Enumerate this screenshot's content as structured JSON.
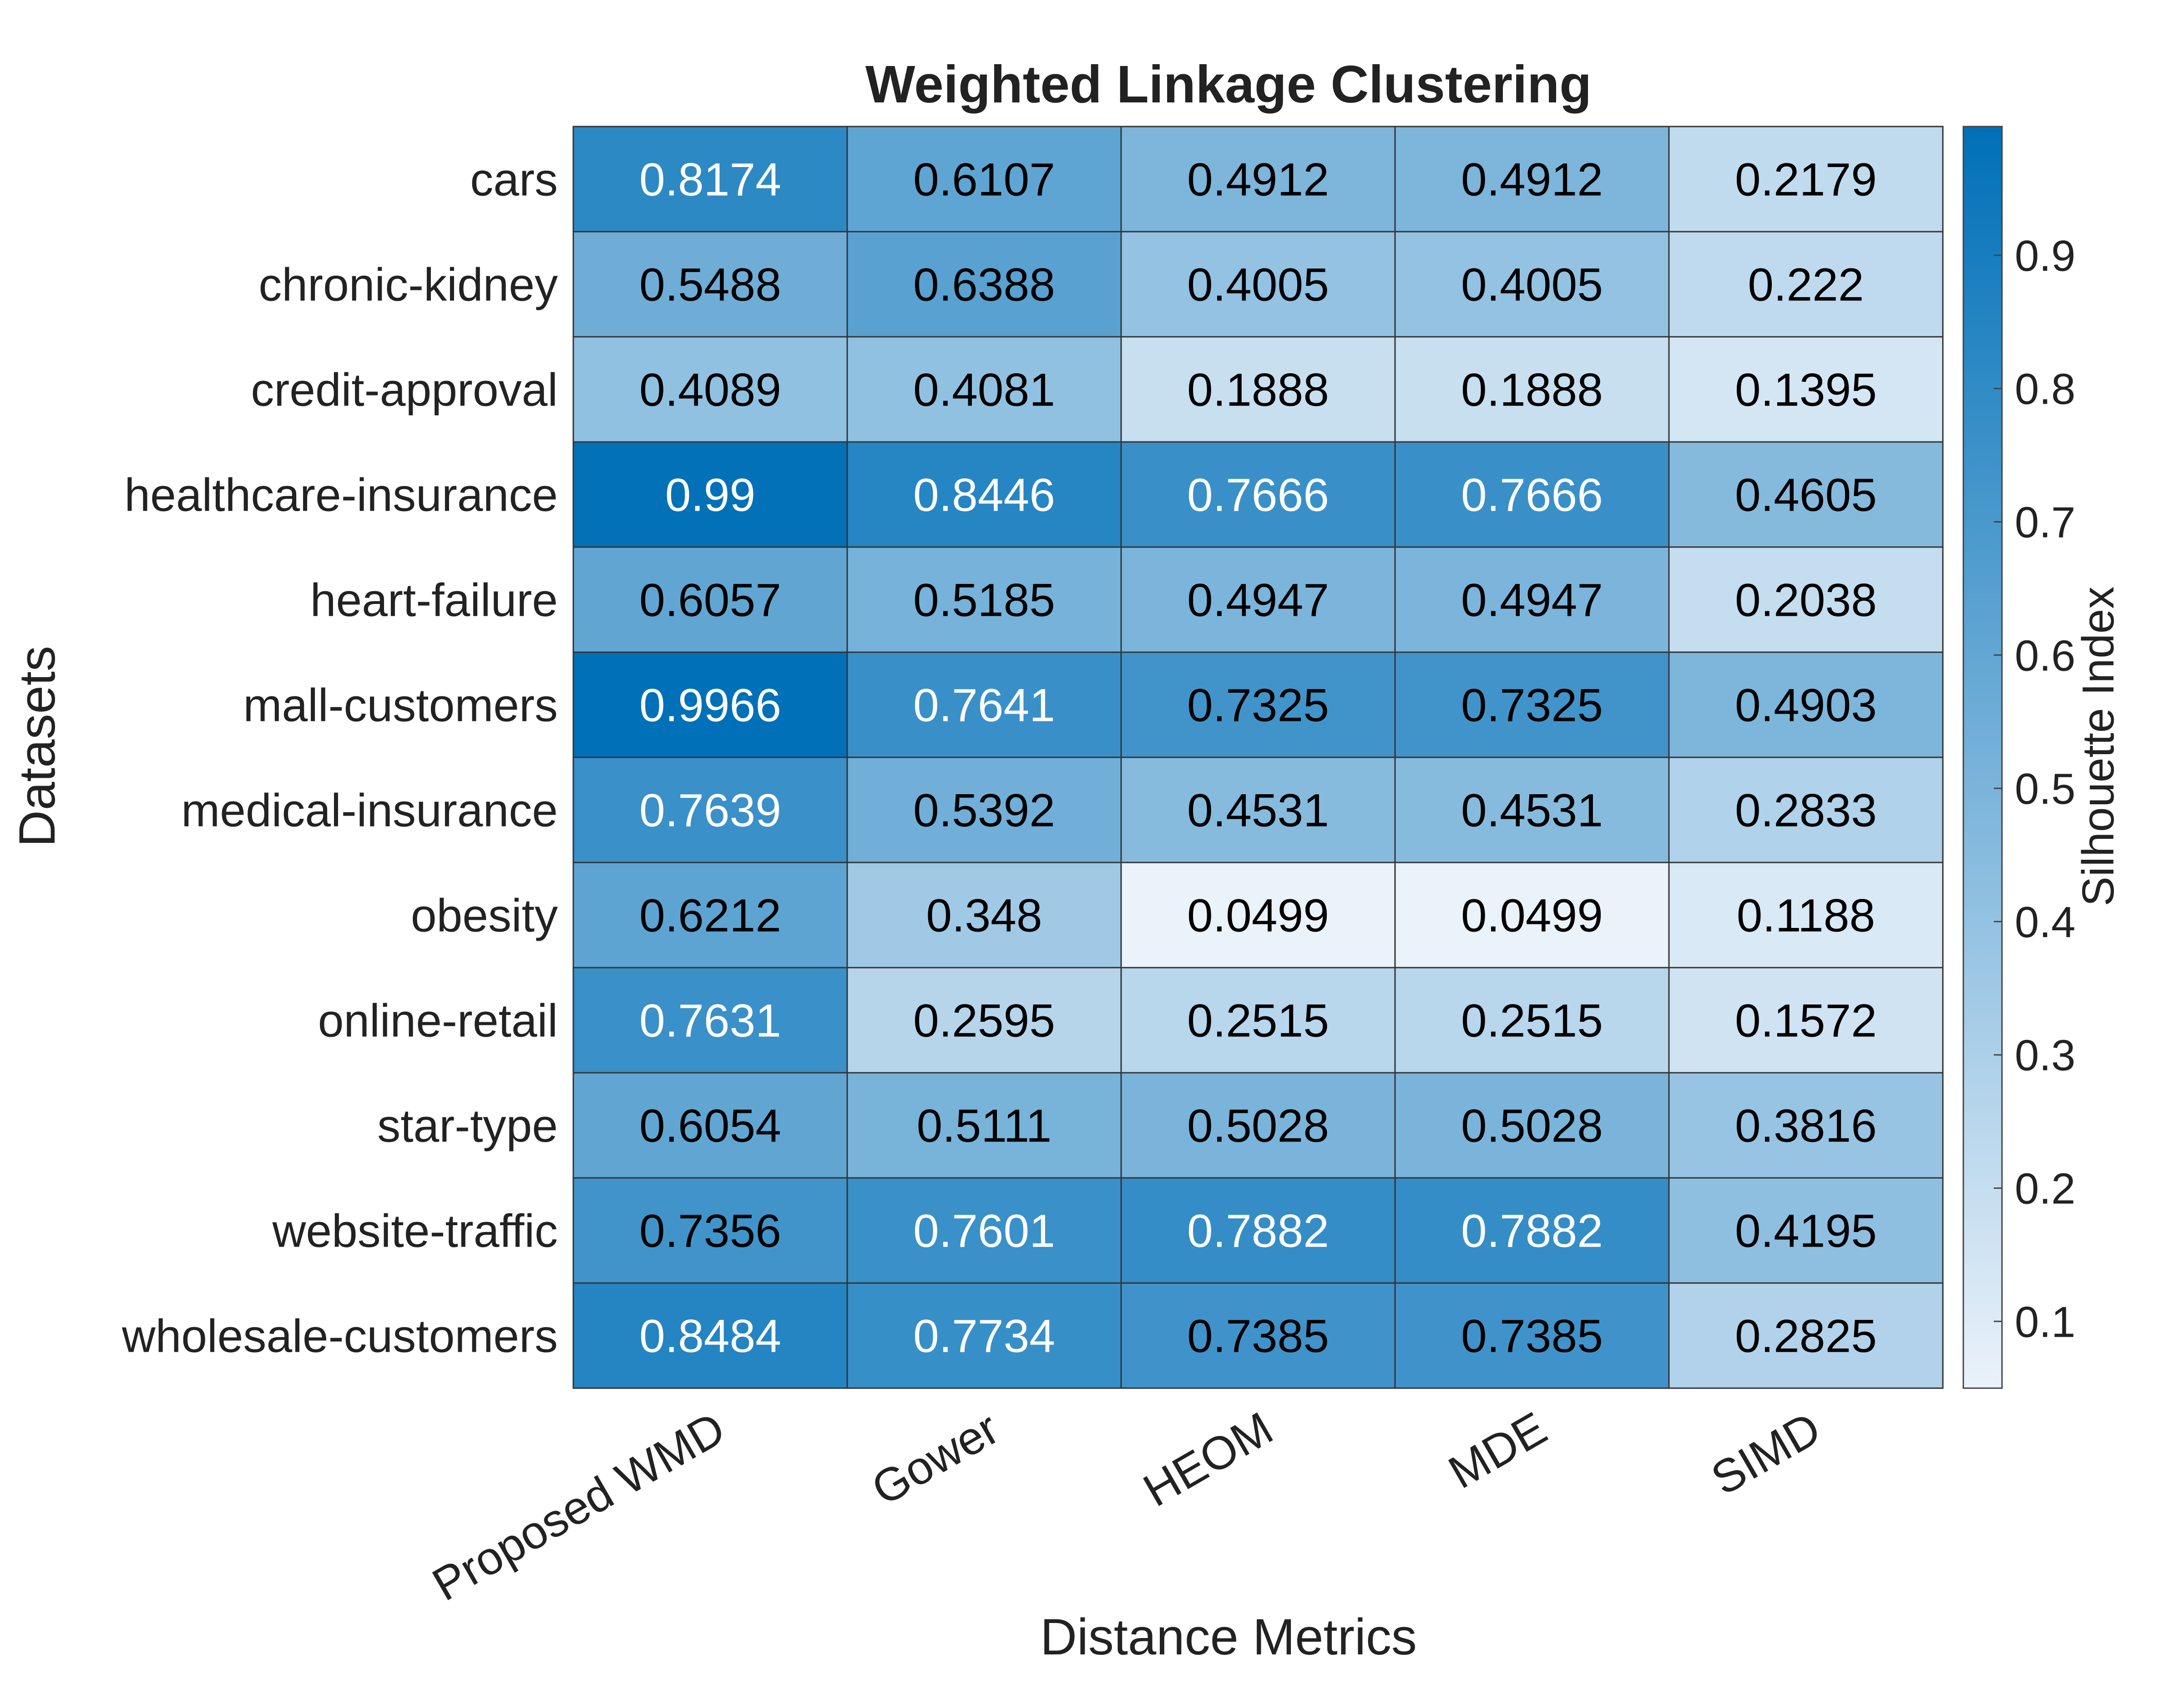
{
  "chart_data": {
    "type": "heatmap",
    "title": "Weighted Linkage Clustering",
    "xlabel": "Distance Metrics",
    "ylabel": "Datasets",
    "x_categories": [
      "Proposed WMD",
      "Gower",
      "HEOM",
      "MDE",
      "SIMD"
    ],
    "y_categories": [
      "cars",
      "chronic-kidney",
      "credit-approval",
      "healthcare-insurance",
      "heart-failure",
      "mall-customers",
      "medical-insurance",
      "obesity",
      "online-retail",
      "star-type",
      "website-traffic",
      "wholesale-customers"
    ],
    "values": [
      [
        "0.8174",
        "0.6107",
        "0.4912",
        "0.4912",
        "0.2179"
      ],
      [
        "0.5488",
        "0.6388",
        "0.4005",
        "0.4005",
        "0.222"
      ],
      [
        "0.4089",
        "0.4081",
        "0.1888",
        "0.1888",
        "0.1395"
      ],
      [
        "0.99",
        "0.8446",
        "0.7666",
        "0.7666",
        "0.4605"
      ],
      [
        "0.6057",
        "0.5185",
        "0.4947",
        "0.4947",
        "0.2038"
      ],
      [
        "0.9966",
        "0.7641",
        "0.7325",
        "0.7325",
        "0.4903"
      ],
      [
        "0.7639",
        "0.5392",
        "0.4531",
        "0.4531",
        "0.2833"
      ],
      [
        "0.6212",
        "0.348",
        "0.0499",
        "0.0499",
        "0.1188"
      ],
      [
        "0.7631",
        "0.2595",
        "0.2515",
        "0.2515",
        "0.1572"
      ],
      [
        "0.6054",
        "0.5111",
        "0.5028",
        "0.5028",
        "0.3816"
      ],
      [
        "0.7356",
        "0.7601",
        "0.7882",
        "0.7882",
        "0.4195"
      ],
      [
        "0.8484",
        "0.7734",
        "0.7385",
        "0.7385",
        "0.2825"
      ]
    ],
    "colorbar": {
      "label": "Silhouette Index",
      "range": [
        0.0499,
        0.9966
      ],
      "ticks": [
        "0.1",
        "0.2",
        "0.3",
        "0.4",
        "0.5",
        "0.6",
        "0.7",
        "0.8",
        "0.9"
      ]
    },
    "colors": {
      "low": "#eaf2fa",
      "high": "#0070b8",
      "text_dark": "#000000",
      "text_light": "#ffffff",
      "grid": "#333333"
    }
  }
}
